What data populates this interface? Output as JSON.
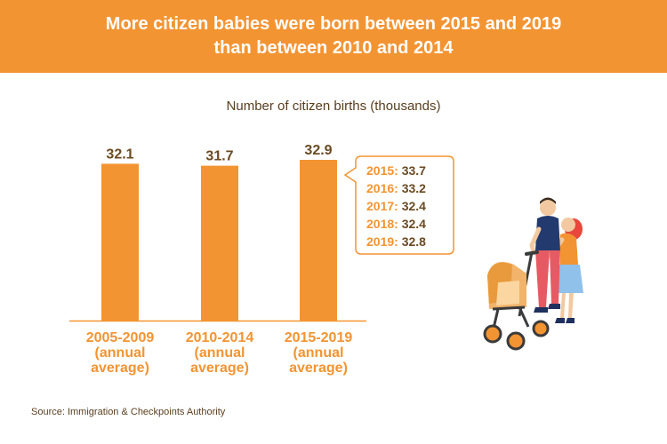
{
  "header": {
    "title_line1": "More citizen babies were born between 2015 and 2019",
    "title_line2": "than between 2010 and 2014"
  },
  "colors": {
    "banner": "#f39432",
    "bar": "#f39432",
    "value_label": "#6b4a22",
    "callout_border": "#f39432"
  },
  "chart_data": {
    "type": "bar",
    "title": "Number of citizen births (thousands)",
    "categories": [
      [
        "2005-2009",
        "(annual",
        "average)"
      ],
      [
        "2010-2014",
        "(annual",
        "average)"
      ],
      [
        "2015-2019",
        "(annual",
        "average)"
      ]
    ],
    "values": [
      32.1,
      31.7,
      32.9
    ],
    "value_labels": [
      "32.1",
      "31.7",
      "32.9"
    ],
    "ylim": [
      0,
      34
    ],
    "grid": false,
    "annotation": {
      "attached_to": "2015-2019",
      "items": [
        {
          "year": "2015:",
          "value": "33.7"
        },
        {
          "year": "2016:",
          "value": "33.2"
        },
        {
          "year": "2017:",
          "value": "32.4"
        },
        {
          "year": "2018:",
          "value": "32.4"
        },
        {
          "year": "2019:",
          "value": "32.8"
        }
      ]
    }
  },
  "footer": {
    "source": "Source: Immigration & Checkpoints Authority"
  },
  "illustration": {
    "icon": "family-with-stroller-icon"
  }
}
